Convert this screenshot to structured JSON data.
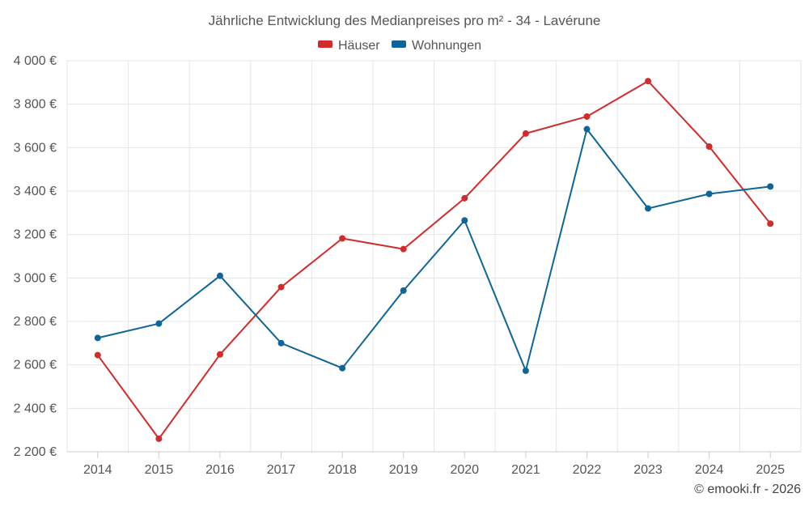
{
  "chart_data": {
    "type": "line",
    "title": "Jährliche Entwicklung des Medianpreises pro m² - 34 - Lavérune",
    "categories": [
      "2014",
      "2015",
      "2016",
      "2017",
      "2018",
      "2019",
      "2020",
      "2021",
      "2022",
      "2023",
      "2024",
      "2025"
    ],
    "series": [
      {
        "name": "Häuser",
        "color": "#d32a2a",
        "values": [
          2645,
          2260,
          2648,
          2958,
          3182,
          3133,
          3367,
          3665,
          3743,
          3906,
          3605,
          3250
        ]
      },
      {
        "name": "Wohnungen",
        "color": "#0e6597",
        "values": [
          2724,
          2790,
          3010,
          2700,
          2585,
          2942,
          3265,
          2573,
          3685,
          3320,
          3387,
          3421
        ]
      }
    ],
    "yticks": [
      2200,
      2400,
      2600,
      2800,
      3000,
      3200,
      3400,
      3600,
      3800,
      4000
    ],
    "ytick_labels": [
      "2 200 €",
      "2 400 €",
      "2 600 €",
      "2 800 €",
      "3 000 €",
      "3 200 €",
      "3 400 €",
      "3 600 €",
      "3 800 €",
      "4 000 €"
    ],
    "ylim": [
      2200,
      4000
    ],
    "xlabel": "",
    "ylabel": "",
    "legend_position": "top-center",
    "grid": true
  },
  "credit": "© emooki.fr - 2026"
}
